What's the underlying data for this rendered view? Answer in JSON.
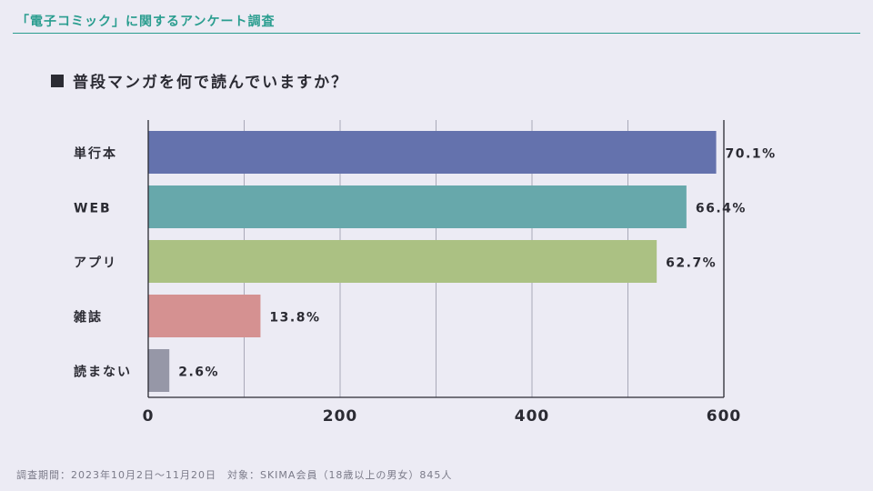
{
  "header": {
    "title": "「電子コミック」に関するアンケート調査"
  },
  "question": {
    "text": "普段マンガを何で読んでいますか？"
  },
  "footer": {
    "text": "調査期間：2023年10月2日〜11月20日　対象：SKIMA会員（18歳以上の男女）845人"
  },
  "chart_data": {
    "type": "bar",
    "orientation": "horizontal",
    "title": "普段マンガを何で読んでいますか？",
    "categories": [
      "単行本",
      "WEB",
      "アプリ",
      "雑誌",
      "読まない"
    ],
    "values": [
      592,
      561,
      530,
      117,
      22
    ],
    "value_labels": [
      "70.1%",
      "66.4%",
      "62.7%",
      "13.8%",
      "2.6%"
    ],
    "colors": [
      "#6472ad",
      "#67a8ab",
      "#abc183",
      "#d59191",
      "#9697a7"
    ],
    "xlim": [
      0,
      600
    ],
    "xticks": [
      "0",
      "200",
      "400",
      "600"
    ],
    "grid": true,
    "xlabel": "",
    "ylabel": ""
  }
}
